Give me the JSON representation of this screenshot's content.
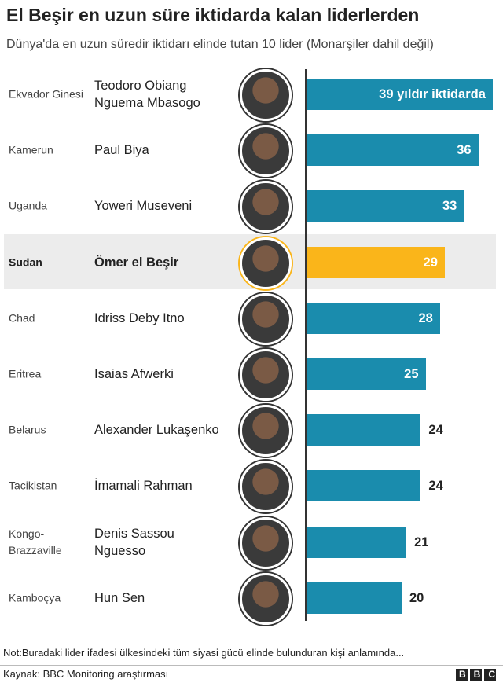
{
  "chart_data": {
    "type": "bar",
    "title": "El Beşir en uzun süre iktidarda kalan liderlerden",
    "subtitle": "Dünya'da en uzun süredir iktidarı elinde tutan 10 lider (Monarşiler dahil değil)",
    "categories": [
      "Ekvador Ginesi",
      "Kamerun",
      "Uganda",
      "Sudan",
      "Chad",
      "Eritrea",
      "Belarus",
      "Tacikistan",
      "Kongo-Brazzaville",
      "Kamboçya"
    ],
    "leaders": [
      "Teodoro Obiang Nguema Mbasogo",
      "Paul Biya",
      "Yoweri Museveni",
      "Ömer el Beşir",
      "Idriss Deby Itno",
      "Isaias Afwerki",
      "Alexander Lukaşenko",
      "İmamali Rahman",
      "Denis Sassou Nguesso",
      "Hun Sen"
    ],
    "values": [
      39,
      36,
      33,
      29,
      28,
      25,
      24,
      24,
      21,
      20
    ],
    "value_labels": [
      "39 yıldır iktidarda",
      "36",
      "33",
      "29",
      "28",
      "25",
      "24",
      "24",
      "21",
      "20"
    ],
    "colors": [
      "#1a8cad",
      "#1a8cad",
      "#1a8cad",
      "#fab51a",
      "#1a8cad",
      "#1a8cad",
      "#1a8cad",
      "#1a8cad",
      "#1a8cad",
      "#1a8cad"
    ],
    "note": "Not:Buradaki lider ifadesi ülkesindeki tüm siyasi gücü elinde bulunduran kişi anlamında...",
    "source": "Kaynak: BBC Monitoring araştırması",
    "logo": "BBC"
  }
}
